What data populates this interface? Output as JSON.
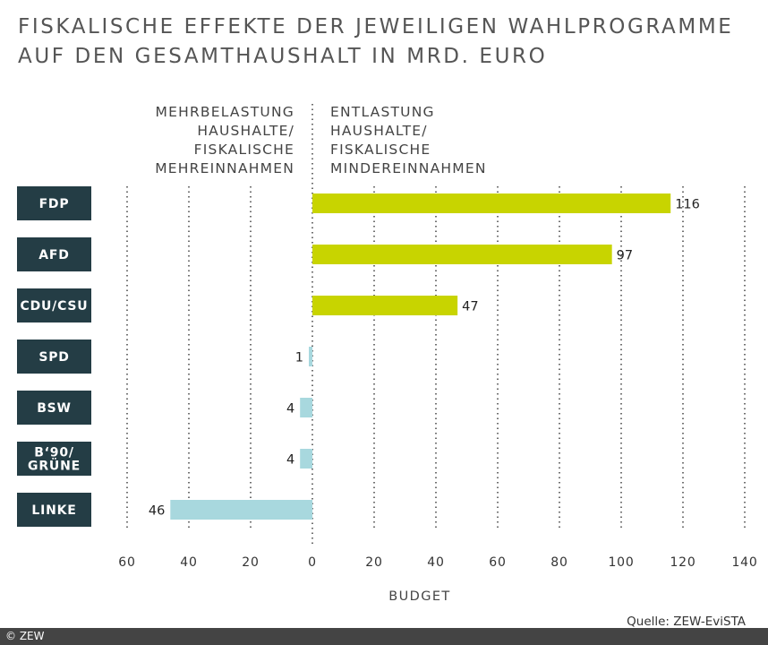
{
  "title": "FISKALISCHE EFFEKTE DER JEWEILIGEN WAHLPROGRAMME AUF DEN GESAMTHAUSHALT IN MRD. EURO",
  "left_header": [
    "MEHRBELASTUNG",
    "HAUSHALTE/",
    "FISKALISCHE",
    "MEHREINNAHMEN"
  ],
  "right_header": [
    "ENTLASTUNG",
    "HAUSHALTE/",
    "FISKALISCHE",
    "MINDEREINNAHMEN"
  ],
  "source": "Quelle: ZEW-EviSTA",
  "copyright": "© ZEW",
  "colors": {
    "positive": "#c8d400",
    "negative": "#a8d8de",
    "label_bg": "#243d45",
    "label_text": "#ffffff"
  },
  "chart_data": {
    "type": "bar",
    "orientation": "horizontal",
    "categories": [
      "FDP",
      "AFD",
      "CDU/CSU",
      "SPD",
      "BSW",
      "B‘90/\nGRÜNE",
      "LINKE"
    ],
    "values": [
      116,
      97,
      47,
      -1,
      -4,
      -4,
      -46
    ],
    "data_labels": [
      "116",
      "97",
      "47",
      "1",
      "4",
      "4",
      "46"
    ],
    "xlabel": "BUDGET",
    "xlim": [
      -60,
      140
    ],
    "xticks": [
      -60,
      -40,
      -20,
      0,
      20,
      40,
      60,
      80,
      100,
      120,
      140
    ],
    "xtick_labels": [
      "60",
      "40",
      "20",
      "0",
      "20",
      "40",
      "60",
      "80",
      "100",
      "120",
      "140"
    ],
    "grid": "vertical dotted"
  }
}
